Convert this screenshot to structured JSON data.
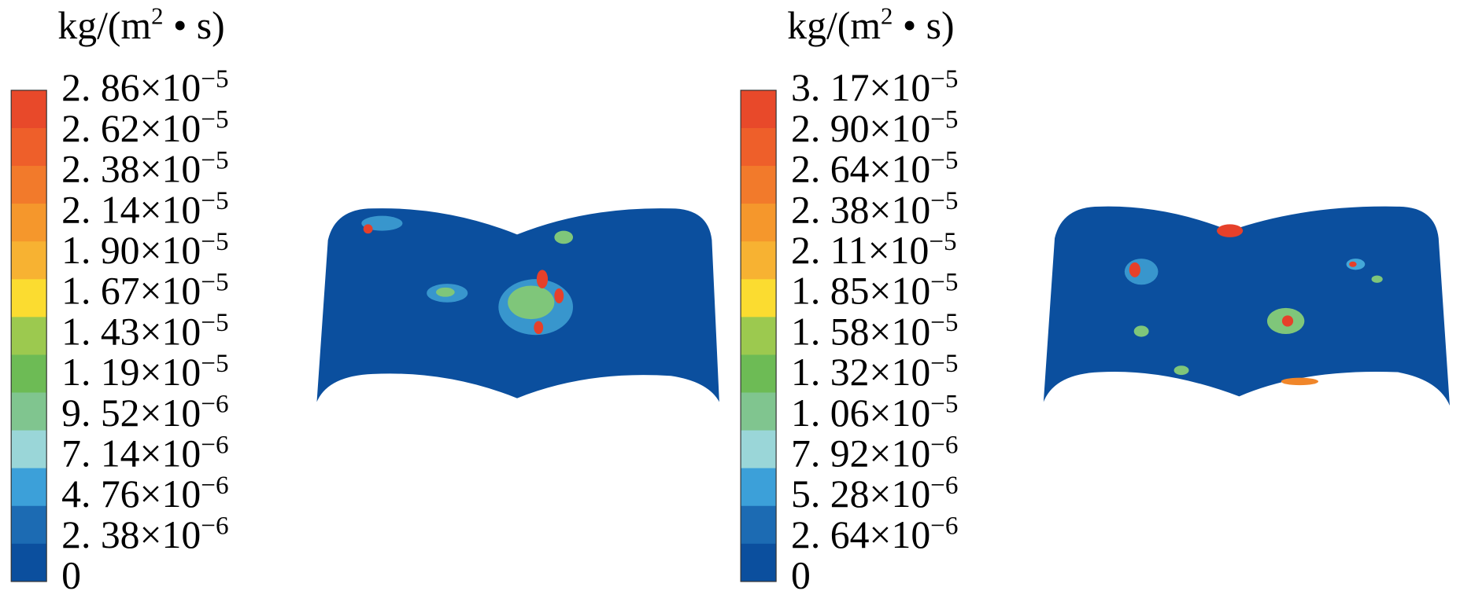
{
  "panels": [
    {
      "unit": {
        "base": "kg/(m",
        "sup": "2",
        "rest": " • s)"
      },
      "levels": [
        {
          "label": "2. 86×10",
          "exponent": "−5"
        },
        {
          "label": "2. 62×10",
          "exponent": "−5"
        },
        {
          "label": "2. 38×10",
          "exponent": "−5"
        },
        {
          "label": "2. 14×10",
          "exponent": "−5"
        },
        {
          "label": "1. 90×10",
          "exponent": "−5"
        },
        {
          "label": "1. 67×10",
          "exponent": "−5"
        },
        {
          "label": "1. 43×10",
          "exponent": "−5"
        },
        {
          "label": "1. 19×10",
          "exponent": "−5"
        },
        {
          "label": "9. 52×10",
          "exponent": "−6"
        },
        {
          "label": "7. 14×10",
          "exponent": "−6"
        },
        {
          "label": "4. 76×10",
          "exponent": "−6"
        },
        {
          "label": "2. 38×10",
          "exponent": "−6"
        },
        {
          "label": "0"
        }
      ]
    },
    {
      "unit": {
        "base": "kg/(m",
        "sup": "2",
        "rest": " • s)"
      },
      "levels": [
        {
          "label": "3. 17×10",
          "exponent": "−5"
        },
        {
          "label": "2. 90×10",
          "exponent": "−5"
        },
        {
          "label": "2. 64×10",
          "exponent": "−5"
        },
        {
          "label": "2. 38×10",
          "exponent": "−5"
        },
        {
          "label": "2. 11×10",
          "exponent": "−5"
        },
        {
          "label": "1. 85×10",
          "exponent": "−5"
        },
        {
          "label": "1. 58×10",
          "exponent": "−5"
        },
        {
          "label": "1. 32×10",
          "exponent": "−5"
        },
        {
          "label": "1. 06×10",
          "exponent": "−5"
        },
        {
          "label": "7. 92×10",
          "exponent": "−6"
        },
        {
          "label": "5. 28×10",
          "exponent": "−6"
        },
        {
          "label": "2. 64×10",
          "exponent": "−6"
        },
        {
          "label": "0"
        }
      ]
    }
  ]
}
